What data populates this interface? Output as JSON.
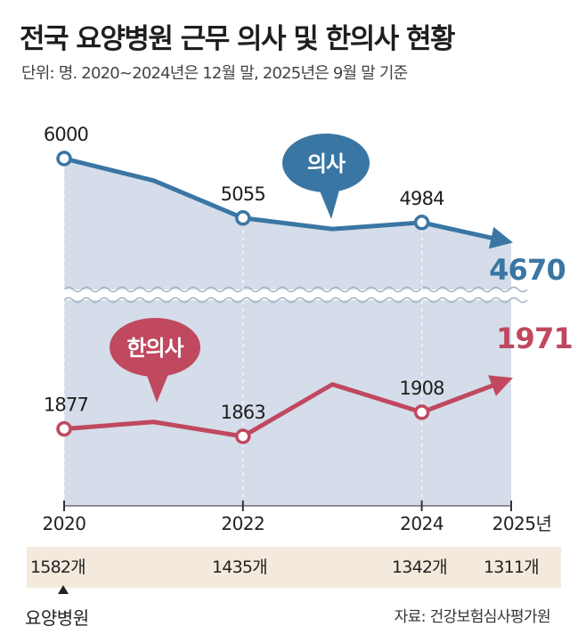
{
  "title": "전국 요양병원 근무 의사 및 한의사 현황",
  "subtitle": "단위: 명. 2020~2024년은 12월 말, 2025년은 9월 말 기준",
  "chart_data": {
    "type": "line",
    "x": [
      "2020",
      "2021",
      "2022",
      "2023",
      "2024",
      "2025"
    ],
    "x_tick_labels": [
      "2020",
      "2022",
      "2024",
      "2025년"
    ],
    "series": [
      {
        "name": "의사",
        "values": [
          6000,
          5650,
          5055,
          4880,
          4984,
          4670
        ],
        "labels": [
          "6000",
          "",
          "5055",
          "",
          "4984",
          "4670"
        ],
        "color": "#3a76a4"
      },
      {
        "name": "한의사",
        "values": [
          1877,
          1890,
          1863,
          1960,
          1908,
          1971
        ],
        "labels": [
          "1877",
          "",
          "1863",
          "",
          "1908",
          "1971"
        ],
        "color": "#c0485f"
      }
    ],
    "axis_break": true,
    "area_color": "#d4dde9",
    "grid": false
  },
  "hospital_counts": {
    "label": "요양병원",
    "items": [
      "1582개",
      "1435개",
      "1342개",
      "1311개"
    ]
  },
  "source": "자료: 건강보험심사평가원"
}
